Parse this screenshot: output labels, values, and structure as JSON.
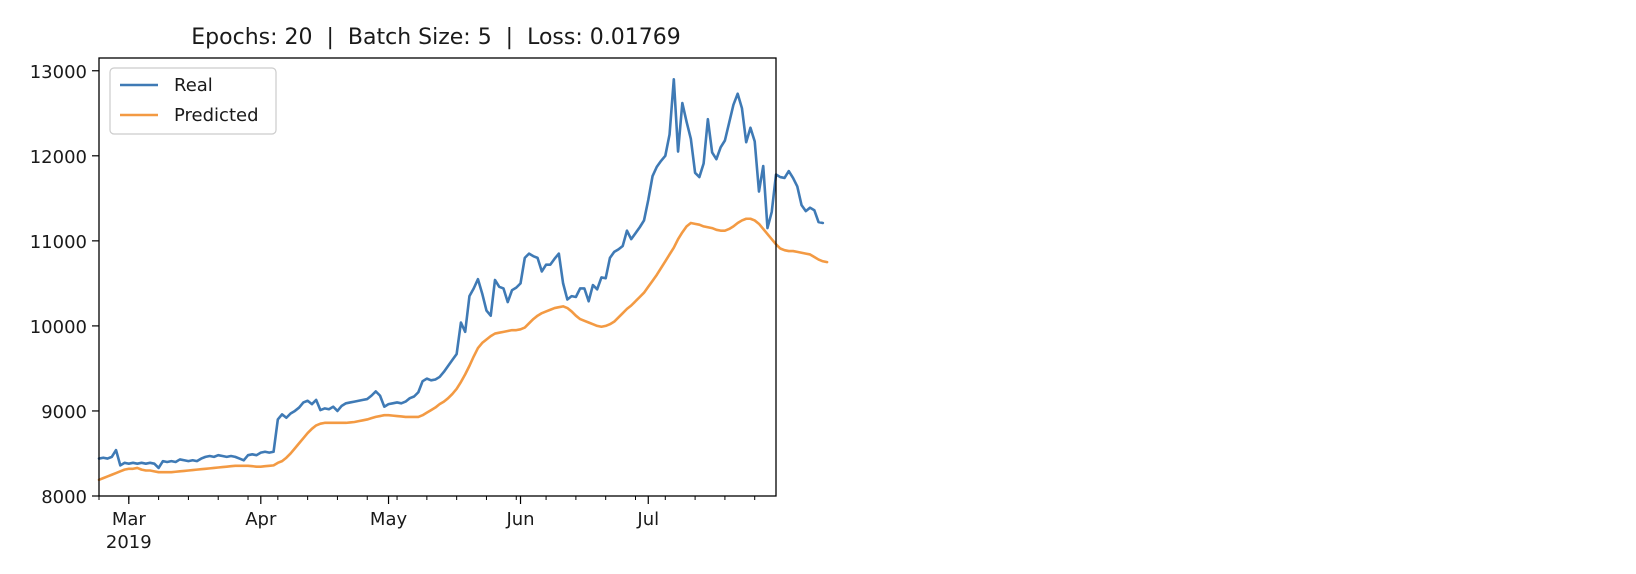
{
  "chart_data": {
    "type": "line",
    "title": "Epochs: 20  |  Batch Size: 5  |  Loss: 0.01769",
    "xlabel": "",
    "ylabel": "",
    "x_start": "2019-02-22",
    "x_end": "2019-07-31",
    "xlim": [
      "2019-02-22",
      "2019-07-31"
    ],
    "ylim": [
      8000,
      13150
    ],
    "y_ticks": [
      8000,
      9000,
      10000,
      11000,
      12000,
      13000
    ],
    "x_ticks": [
      {
        "date": "2019-03-01",
        "label": "Mar",
        "sublabel": "2019"
      },
      {
        "date": "2019-04-01",
        "label": "Apr",
        "sublabel": ""
      },
      {
        "date": "2019-05-01",
        "label": "May",
        "sublabel": ""
      },
      {
        "date": "2019-06-01",
        "label": "Jun",
        "sublabel": ""
      },
      {
        "date": "2019-07-01",
        "label": "Jul",
        "sublabel": ""
      }
    ],
    "grid": false,
    "legend_position": "top-left",
    "series": [
      {
        "name": "Real",
        "color": "#3f7ab5",
        "values": [
          8440,
          8450,
          8440,
          8460,
          8540,
          8360,
          8390,
          8380,
          8390,
          8380,
          8390,
          8380,
          8390,
          8380,
          8330,
          8410,
          8400,
          8410,
          8400,
          8430,
          8420,
          8410,
          8420,
          8410,
          8440,
          8460,
          8470,
          8460,
          8480,
          8470,
          8460,
          8470,
          8460,
          8440,
          8420,
          8480,
          8490,
          8480,
          8510,
          8520,
          8510,
          8520,
          8900,
          8960,
          8920,
          8970,
          9000,
          9040,
          9100,
          9120,
          9080,
          9130,
          9010,
          9030,
          9020,
          9050,
          9000,
          9060,
          9090,
          9100,
          9110,
          9120,
          9130,
          9140,
          9180,
          9230,
          9180,
          9050,
          9080,
          9090,
          9100,
          9090,
          9110,
          9150,
          9170,
          9220,
          9350,
          9380,
          9360,
          9370,
          9400,
          9460,
          9530,
          9600,
          9670,
          10040,
          9930,
          10350,
          10440,
          10550,
          10380,
          10180,
          10120,
          10540,
          10460,
          10440,
          10280,
          10420,
          10450,
          10500,
          10800,
          10850,
          10820,
          10800,
          10640,
          10720,
          10720,
          10790,
          10850,
          10500,
          10310,
          10350,
          10340,
          10440,
          10440,
          10290,
          10480,
          10430,
          10570,
          10560,
          10800,
          10870,
          10900,
          10940,
          11120,
          11020,
          11090,
          11160,
          11240,
          11480,
          11760,
          11870,
          11940,
          12000,
          12250,
          12900,
          12050,
          12620,
          12400,
          12200,
          11800,
          11750,
          11910,
          12430,
          12040,
          11960,
          12100,
          12180,
          12390,
          12600,
          12730,
          12560,
          12160,
          12330,
          12170,
          11580,
          11880,
          11150,
          11340,
          11780,
          11750,
          11740,
          11820,
          11740,
          11640,
          11420,
          11350,
          11390,
          11360,
          11220,
          11210
        ]
      },
      {
        "name": "Predicted",
        "color": "#f39a43",
        "values": [
          8190,
          8210,
          8230,
          8250,
          8270,
          8290,
          8310,
          8320,
          8320,
          8330,
          8310,
          8300,
          8300,
          8290,
          8280,
          8280,
          8280,
          8280,
          8285,
          8290,
          8295,
          8300,
          8305,
          8310,
          8315,
          8320,
          8325,
          8330,
          8335,
          8340,
          8345,
          8350,
          8355,
          8355,
          8355,
          8355,
          8350,
          8345,
          8345,
          8350,
          8355,
          8360,
          8390,
          8410,
          8450,
          8500,
          8560,
          8620,
          8680,
          8740,
          8790,
          8830,
          8850,
          8860,
          8860,
          8860,
          8860,
          8860,
          8860,
          8865,
          8870,
          8880,
          8890,
          8900,
          8915,
          8930,
          8940,
          8950,
          8950,
          8945,
          8940,
          8935,
          8930,
          8930,
          8930,
          8930,
          8950,
          8980,
          9010,
          9040,
          9080,
          9110,
          9150,
          9200,
          9260,
          9340,
          9430,
          9530,
          9640,
          9740,
          9800,
          9840,
          9880,
          9910,
          9920,
          9930,
          9940,
          9950,
          9950,
          9960,
          9980,
          10030,
          10080,
          10120,
          10150,
          10170,
          10190,
          10210,
          10220,
          10230,
          10210,
          10170,
          10120,
          10080,
          10060,
          10040,
          10020,
          10000,
          9990,
          10000,
          10020,
          10050,
          10100,
          10150,
          10200,
          10240,
          10290,
          10340,
          10390,
          10460,
          10530,
          10600,
          10680,
          10760,
          10840,
          10920,
          11020,
          11100,
          11170,
          11210,
          11200,
          11190,
          11170,
          11160,
          11150,
          11130,
          11120,
          11120,
          11140,
          11170,
          11210,
          11240,
          11260,
          11260,
          11240,
          11200,
          11140,
          11080,
          11020,
          10960,
          10910,
          10890,
          10880,
          10880,
          10870,
          10860,
          10850,
          10840,
          10810,
          10780,
          10760,
          10750
        ]
      }
    ]
  }
}
